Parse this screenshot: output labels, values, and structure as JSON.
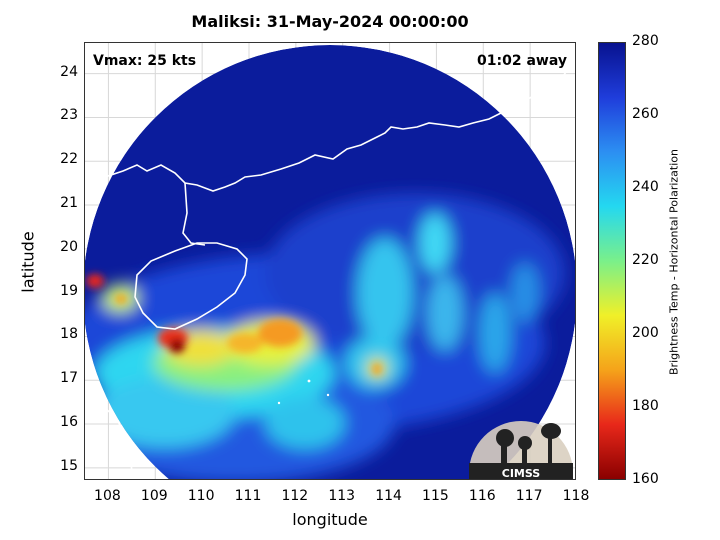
{
  "title": "Maliksi: 31-May-2024 00:00:00",
  "vmax": "Vmax: 25 kts",
  "time_away": "01:02 away",
  "xlabel": "longitude",
  "ylabel": "latitude",
  "x_ticks": [
    "108",
    "109",
    "110",
    "111",
    "112",
    "113",
    "114",
    "115",
    "116",
    "117",
    "118"
  ],
  "y_ticks": [
    "24",
    "23",
    "22",
    "21",
    "20",
    "19",
    "18",
    "17",
    "16",
    "15"
  ],
  "colorbar": {
    "label": "Brightness Temp - Horizontal Polarization",
    "ticks": [
      "280",
      "260",
      "240",
      "220",
      "200",
      "180",
      "160"
    ],
    "colors": [
      "#08128f",
      "#1f3ddb",
      "#2c8ff2",
      "#24d8f0",
      "#7af08a",
      "#f0f028",
      "#f5a31a",
      "#e8281a",
      "#8a0000"
    ]
  },
  "logo": {
    "text": "CIMSS"
  },
  "map": {
    "lon_range": [
      107.5,
      118
    ],
    "lat_range": [
      14.7,
      24.7
    ],
    "background_color": "#0b1c9c",
    "coast_color": "#ffffff"
  }
}
